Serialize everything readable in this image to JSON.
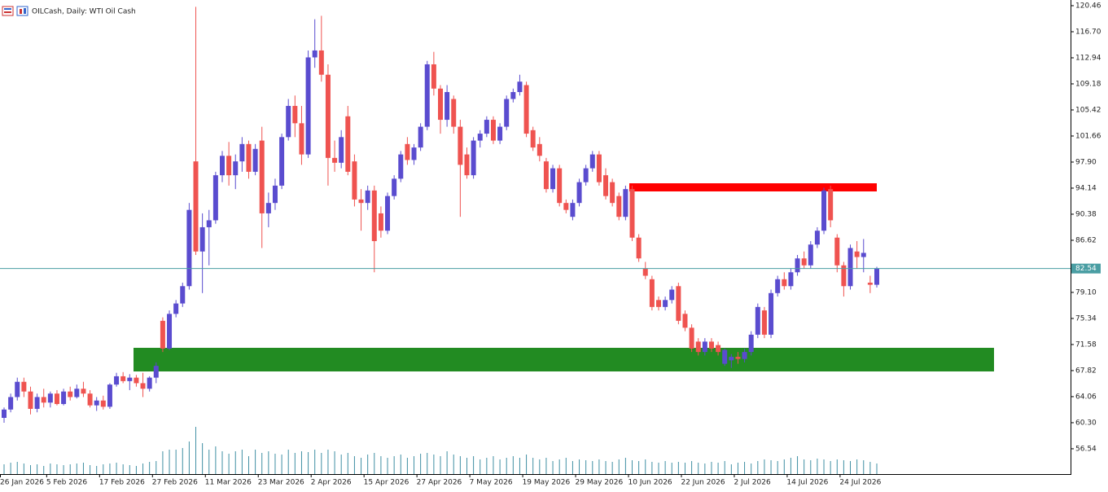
{
  "chart_data": {
    "type": "candlestick",
    "title": "OILCash, Daily: WTI Oil Cash",
    "bull_color": "#5a4ccf",
    "bear_color": "#ef5350",
    "volume_color": "#3f8fa3",
    "last_price_color": "#4a9ea3",
    "ylim": [
      52.89,
      121.28
    ],
    "yticks": [
      120.46,
      {
        "value": 116.7,
        "label": "116.70"
      },
      112.94,
      109.18,
      105.42,
      101.66,
      {
        "value": 97.9,
        "label": "97.90"
      },
      94.14,
      90.38,
      86.62,
      {
        "value": 79.1,
        "label": "79.10"
      },
      75.34,
      71.58,
      67.82,
      64.06,
      {
        "value": 60.3,
        "label": "60.30"
      },
      56.54
    ],
    "last_price": 82.54,
    "categories": [
      "26 Jan 2026",
      null,
      null,
      null,
      null,
      null,
      null,
      "5 Feb 2026",
      null,
      null,
      null,
      null,
      null,
      null,
      null,
      "17 Feb 2026",
      null,
      null,
      null,
      null,
      null,
      null,
      null,
      "27 Feb 2026",
      null,
      null,
      null,
      null,
      null,
      null,
      null,
      "11 Mar 2026",
      null,
      null,
      null,
      null,
      null,
      null,
      null,
      "23 Mar 2026",
      null,
      null,
      null,
      null,
      null,
      null,
      null,
      "2 Apr 2026",
      null,
      null,
      null,
      null,
      null,
      null,
      null,
      "15 Apr 2026",
      null,
      null,
      null,
      null,
      null,
      null,
      null,
      "27 Apr 2026",
      null,
      null,
      null,
      null,
      null,
      null,
      null,
      "7 May 2026",
      null,
      null,
      null,
      null,
      null,
      null,
      null,
      "19 May 2026",
      null,
      null,
      null,
      null,
      null,
      null,
      null,
      "29 May 2026",
      null,
      null,
      null,
      null,
      null,
      null,
      null,
      "10 Jun 2026",
      null,
      null,
      null,
      null,
      null,
      null,
      null,
      "22 Jun 2026",
      null,
      null,
      null,
      null,
      null,
      null,
      null,
      "2 Jul 2026",
      null,
      null,
      null,
      null,
      null,
      null,
      null,
      "14 Jul 2026",
      null,
      null,
      null,
      null,
      null,
      null,
      null,
      "24 Jul 2026",
      null,
      null,
      null,
      null,
      null
    ],
    "candles": [
      [
        61.0,
        62.5,
        60.3,
        62.2
      ],
      [
        62.2,
        64.5,
        61.8,
        64.0
      ],
      [
        64.0,
        66.8,
        63.5,
        66.2
      ],
      [
        66.2,
        66.8,
        64.0,
        64.8
      ],
      [
        64.8,
        65.5,
        61.5,
        62.3
      ],
      [
        62.3,
        64.5,
        61.8,
        64.0
      ],
      [
        64.0,
        65.2,
        62.5,
        63.2
      ],
      [
        63.2,
        64.8,
        62.5,
        64.5
      ],
      [
        64.5,
        65.0,
        62.8,
        63.0
      ],
      [
        63.0,
        65.2,
        62.8,
        64.8
      ],
      [
        64.8,
        65.5,
        63.5,
        64.0
      ],
      [
        64.0,
        65.8,
        63.8,
        65.2
      ],
      [
        65.2,
        66.2,
        64.0,
        64.5
      ],
      [
        64.5,
        65.0,
        62.5,
        62.8
      ],
      [
        62.8,
        64.0,
        62.0,
        63.5
      ],
      [
        63.5,
        64.2,
        62.2,
        62.6
      ],
      [
        62.6,
        66.0,
        62.3,
        65.8
      ],
      [
        65.8,
        67.5,
        65.5,
        67.0
      ],
      [
        67.0,
        67.6,
        66.0,
        66.3
      ],
      [
        66.3,
        67.3,
        65.0,
        66.8
      ],
      [
        66.8,
        67.2,
        65.5,
        66.0
      ],
      [
        66.0,
        67.5,
        64.0,
        65.2
      ],
      [
        65.2,
        67.0,
        64.8,
        66.8
      ],
      [
        66.8,
        69.0,
        66.0,
        68.5
      ],
      [
        75.0,
        75.5,
        70.5,
        71.0
      ],
      [
        71.0,
        76.5,
        70.8,
        76.0
      ],
      [
        76.0,
        78.0,
        75.5,
        77.5
      ],
      [
        77.5,
        80.5,
        77.0,
        80.0
      ],
      [
        80.0,
        92.0,
        79.5,
        91.0
      ],
      [
        98.0,
        120.3,
        84.5,
        85.0
      ],
      [
        85.0,
        90.5,
        79.0,
        88.5
      ],
      [
        88.5,
        91.0,
        83.0,
        89.5
      ],
      [
        89.5,
        96.5,
        89.0,
        96.0
      ],
      [
        96.0,
        99.5,
        95.0,
        98.8
      ],
      [
        98.8,
        100.8,
        94.5,
        96.0
      ],
      [
        96.0,
        99.0,
        94.0,
        98.0
      ],
      [
        98.0,
        101.5,
        96.5,
        100.5
      ],
      [
        100.5,
        101.0,
        95.5,
        96.5
      ],
      [
        96.5,
        100.5,
        96.0,
        99.8
      ],
      [
        101.0,
        103.0,
        85.5,
        90.5
      ],
      [
        90.5,
        93.5,
        88.5,
        92.0
      ],
      [
        92.0,
        95.5,
        91.0,
        94.5
      ],
      [
        94.5,
        102.0,
        94.0,
        101.5
      ],
      [
        101.5,
        107.0,
        101.0,
        106.0
      ],
      [
        106.0,
        107.5,
        101.5,
        103.5
      ],
      [
        103.5,
        106.0,
        97.5,
        99.0
      ],
      [
        99.0,
        114.0,
        98.5,
        113.0
      ],
      [
        113.0,
        118.5,
        111.5,
        114.0
      ],
      [
        114.0,
        119.0,
        109.5,
        110.5
      ],
      [
        110.5,
        112.0,
        94.5,
        98.5
      ],
      [
        98.5,
        101.0,
        96.5,
        97.8
      ],
      [
        97.8,
        102.5,
        97.0,
        101.5
      ],
      [
        104.5,
        106.0,
        96.0,
        96.5
      ],
      [
        98.0,
        99.0,
        91.5,
        92.5
      ],
      [
        92.5,
        94.0,
        88.0,
        92.0
      ],
      [
        92.0,
        94.5,
        91.0,
        93.8
      ],
      [
        93.8,
        94.5,
        82.0,
        86.5
      ],
      [
        90.5,
        91.5,
        87.0,
        88.0
      ],
      [
        88.0,
        93.5,
        87.5,
        93.0
      ],
      [
        93.0,
        96.0,
        92.5,
        95.5
      ],
      [
        95.5,
        99.5,
        95.0,
        99.0
      ],
      [
        100.5,
        101.5,
        97.5,
        98.2
      ],
      [
        98.2,
        100.5,
        97.5,
        100.0
      ],
      [
        100.0,
        103.5,
        99.5,
        103.0
      ],
      [
        103.0,
        112.5,
        102.5,
        112.0
      ],
      [
        112.0,
        113.8,
        107.5,
        108.5
      ],
      [
        108.5,
        109.0,
        102.0,
        104.0
      ],
      [
        104.0,
        109.0,
        103.0,
        108.0
      ],
      [
        107.0,
        107.5,
        102.0,
        103.0
      ],
      [
        103.0,
        104.0,
        90.0,
        97.5
      ],
      [
        99.0,
        100.0,
        95.5,
        96.0
      ],
      [
        96.0,
        101.5,
        95.5,
        101.0
      ],
      [
        101.0,
        102.5,
        100.0,
        102.0
      ],
      [
        102.0,
        104.5,
        101.5,
        104.0
      ],
      [
        104.0,
        104.5,
        100.5,
        101.0
      ],
      [
        101.0,
        103.5,
        100.5,
        103.0
      ],
      [
        103.0,
        107.5,
        102.5,
        107.0
      ],
      [
        107.0,
        108.5,
        106.5,
        108.0
      ],
      [
        108.0,
        110.5,
        107.5,
        109.5
      ],
      [
        109.0,
        109.5,
        101.5,
        102.0
      ],
      [
        102.5,
        103.0,
        99.5,
        100.0
      ],
      [
        100.5,
        101.5,
        98.0,
        98.8
      ],
      [
        98.0,
        98.5,
        93.5,
        94.0
      ],
      [
        94.0,
        97.5,
        93.5,
        97.0
      ],
      [
        97.0,
        97.5,
        91.5,
        92.0
      ],
      [
        92.0,
        92.5,
        90.5,
        91.0
      ],
      [
        90.0,
        92.5,
        89.5,
        92.0
      ],
      [
        92.0,
        95.5,
        91.5,
        95.0
      ],
      [
        95.0,
        97.5,
        94.5,
        97.0
      ],
      [
        97.0,
        99.5,
        96.5,
        99.0
      ],
      [
        99.0,
        99.5,
        94.5,
        95.0
      ],
      [
        96.0,
        97.0,
        92.5,
        93.0
      ],
      [
        95.0,
        95.5,
        91.5,
        92.0
      ],
      [
        93.0,
        93.5,
        89.5,
        90.0
      ],
      [
        90.0,
        94.5,
        89.5,
        94.0
      ],
      [
        94.0,
        94.5,
        86.5,
        87.0
      ],
      [
        87.0,
        87.5,
        83.5,
        84.0
      ],
      [
        82.5,
        83.5,
        81.0,
        81.5
      ],
      [
        81.0,
        81.5,
        76.5,
        77.0
      ],
      [
        78.0,
        78.5,
        76.5,
        77.0
      ],
      [
        77.0,
        78.5,
        76.5,
        78.0
      ],
      [
        78.0,
        80.0,
        77.5,
        79.5
      ],
      [
        80.0,
        80.5,
        74.5,
        75.0
      ],
      [
        76.0,
        76.5,
        73.5,
        74.0
      ],
      [
        74.0,
        74.5,
        70.5,
        71.0
      ],
      [
        72.0,
        72.5,
        70.0,
        70.5
      ],
      [
        70.5,
        72.5,
        70.0,
        72.0
      ],
      [
        72.0,
        72.5,
        70.5,
        71.0
      ],
      [
        71.5,
        72.0,
        70.0,
        70.5
      ],
      [
        68.8,
        71.0,
        68.5,
        70.8
      ],
      [
        69.3,
        70.2,
        68.2,
        69.8
      ],
      [
        69.8,
        70.5,
        68.8,
        69.5
      ],
      [
        69.5,
        71.0,
        69.0,
        70.5
      ],
      [
        70.5,
        73.5,
        70.0,
        73.0
      ],
      [
        73.0,
        77.5,
        72.5,
        77.0
      ],
      [
        76.5,
        77.0,
        72.5,
        73.0
      ],
      [
        73.0,
        79.5,
        72.5,
        79.0
      ],
      [
        79.0,
        81.5,
        78.5,
        81.0
      ],
      [
        81.0,
        82.0,
        79.5,
        80.0
      ],
      [
        80.0,
        82.5,
        79.5,
        82.0
      ],
      [
        82.0,
        84.5,
        81.5,
        84.0
      ],
      [
        84.0,
        85.0,
        82.5,
        83.0
      ],
      [
        83.0,
        86.5,
        82.5,
        86.0
      ],
      [
        86.0,
        88.5,
        85.5,
        88.0
      ],
      [
        88.0,
        94.2,
        87.5,
        93.8
      ],
      [
        94.0,
        94.5,
        88.5,
        89.5
      ],
      [
        87.0,
        87.5,
        82.0,
        83.0
      ],
      [
        83.0,
        83.5,
        78.5,
        80.0
      ],
      [
        80.0,
        86.0,
        79.5,
        85.5
      ],
      [
        85.0,
        86.5,
        82.5,
        84.2
      ],
      [
        84.2,
        86.8,
        82.0,
        84.8
      ],
      [
        80.5,
        81.5,
        79.0,
        80.2
      ],
      [
        80.2,
        82.8,
        79.8,
        82.54
      ]
    ],
    "volume": [
      12,
      14,
      15,
      13,
      11,
      12,
      10,
      13,
      12,
      11,
      12,
      13,
      14,
      11,
      10,
      12,
      13,
      14,
      12,
      11,
      10,
      13,
      15,
      16,
      28,
      30,
      30,
      32,
      40,
      58,
      38,
      30,
      34,
      28,
      25,
      28,
      30,
      22,
      30,
      26,
      28,
      25,
      24,
      30,
      26,
      28,
      27,
      30,
      26,
      30,
      28,
      24,
      26,
      22,
      20,
      24,
      26,
      22,
      20,
      22,
      24,
      20,
      22,
      25,
      26,
      24,
      22,
      28,
      24,
      22,
      20,
      22,
      18,
      20,
      22,
      18,
      20,
      22,
      20,
      24,
      20,
      18,
      20,
      16,
      18,
      20,
      16,
      18,
      17,
      16,
      18,
      16,
      15,
      18,
      20,
      17,
      16,
      18,
      15,
      14,
      16,
      14,
      15,
      14,
      16,
      14,
      13,
      15,
      14,
      16,
      12,
      14,
      15,
      13,
      16,
      18,
      17,
      16,
      18,
      20,
      22,
      18,
      17,
      19,
      18,
      16,
      18,
      17,
      16,
      18,
      17,
      15,
      13
    ]
  }
}
